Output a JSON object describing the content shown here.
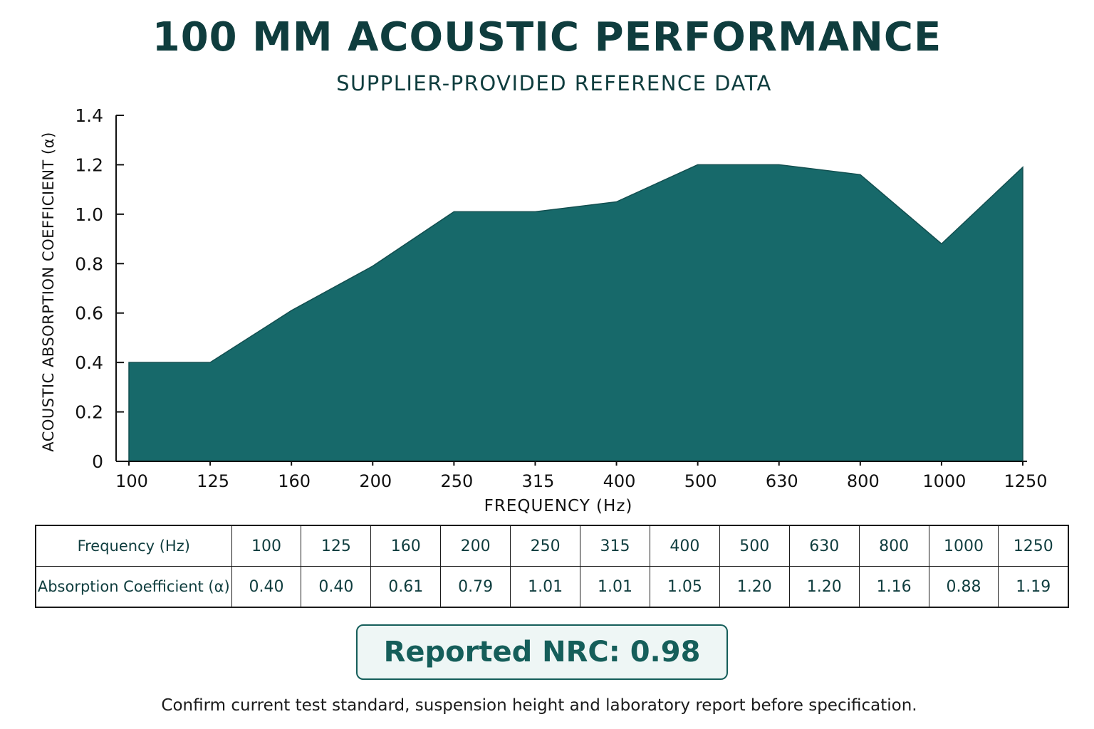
{
  "header": {
    "title": "100 MM ACOUSTIC PERFORMANCE",
    "subtitle": "SUPPLIER-PROVIDED REFERENCE DATA"
  },
  "chart_data": {
    "type": "area",
    "xlabel": "FREQUENCY (Hz)",
    "ylabel": "ACOUSTIC ABSORPTION COEFFICIENT (α)",
    "categories": [
      "100",
      "125",
      "160",
      "200",
      "250",
      "315",
      "400",
      "500",
      "630",
      "800",
      "1000",
      "1250"
    ],
    "values": [
      0.4,
      0.4,
      0.61,
      0.79,
      1.01,
      1.01,
      1.05,
      1.2,
      1.2,
      1.16,
      0.88,
      1.19
    ],
    "ylim": [
      0,
      1.4
    ],
    "y_ticks": [
      "0",
      "0.2",
      "0.4",
      "0.6",
      "0.8",
      "1.0",
      "1.2",
      "1.4"
    ],
    "grid": false,
    "fill_color": "#17696a"
  },
  "table": {
    "row_headers": [
      "Frequency (Hz)",
      "Absorption Coefficient (α)"
    ],
    "frequencies": [
      "100",
      "125",
      "160",
      "200",
      "250",
      "315",
      "400",
      "500",
      "630",
      "800",
      "1000",
      "1250"
    ],
    "coefficients": [
      "0.40",
      "0.40",
      "0.61",
      "0.79",
      "1.01",
      "1.01",
      "1.05",
      "1.20",
      "1.20",
      "1.16",
      "0.88",
      "1.19"
    ]
  },
  "nrc": {
    "label": "Reported NRC: 0.98"
  },
  "footnote": "Confirm current test standard, suspension height and laboratory report before specification.",
  "colors": {
    "title": "#0f3d3e",
    "area": "#17696a",
    "accent": "#155e5a"
  }
}
